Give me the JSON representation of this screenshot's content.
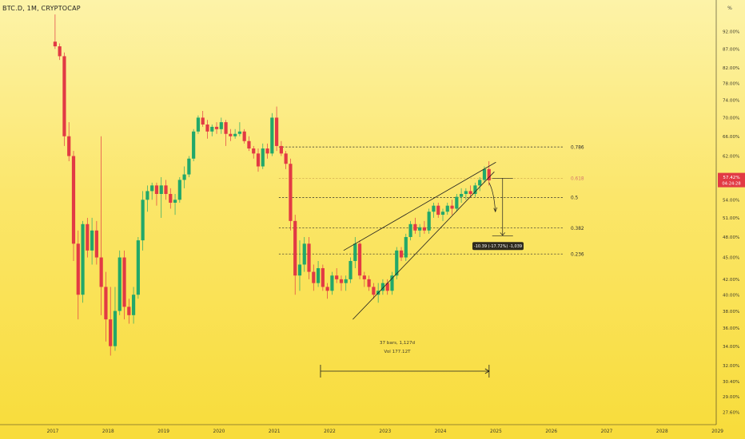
{
  "header": {
    "symbol": "BTC.D, 1M, CRYPTOCAP",
    "percent_symbol": "%"
  },
  "colors": {
    "up": "#22a86a",
    "down": "#e23a44",
    "price_badge": "#e23a44",
    "measure_badge": "#2e2a1e",
    "line": "#1f1f1f"
  },
  "chart_data": {
    "type": "candlestick",
    "title": "BTC.D, 1M, CRYPTOCAP",
    "y_scale": "log",
    "ylim": [
      26.8,
      100
    ],
    "y_ticks": [
      "92.00%",
      "87.00%",
      "82.00%",
      "78.00%",
      "74.00%",
      "70.00%",
      "66.00%",
      "62.00%",
      "58.00%",
      "54.00%",
      "51.00%",
      "48.00%",
      "45.00%",
      "42.00%",
      "40.00%",
      "38.00%",
      "36.00%",
      "34.00%",
      "32.00%",
      "30.40%",
      "29.00%",
      "27.60%"
    ],
    "x_ticks": [
      "2017",
      "2018",
      "2019",
      "2020",
      "2021",
      "2022",
      "2023",
      "2024",
      "2025",
      "2026",
      "2027",
      "2028",
      "2029"
    ],
    "current_price": {
      "value": "57.42%",
      "countdown": "04:24:28"
    },
    "fib_levels": [
      {
        "label": "0.786",
        "value": 63.8
      },
      {
        "label": "0.618",
        "value": 57.8
      },
      {
        "label": "0.5",
        "value": 54.4
      },
      {
        "label": "0.382",
        "value": 49.4
      },
      {
        "label": "0.236",
        "value": 45.5
      }
    ],
    "measure_label": "-10.39 (-17.72%) -1,039",
    "range_info": {
      "bars": "37 bars, 1,127d",
      "vol": "Vol 177.12T"
    },
    "candles": [
      {
        "t": "2017-01",
        "o": 89.0,
        "h": 97.0,
        "l": 87.0,
        "c": 87.7
      },
      {
        "t": "2017-02",
        "o": 87.7,
        "h": 88.5,
        "l": 84.0,
        "c": 85.0
      },
      {
        "t": "2017-03",
        "o": 85.0,
        "h": 86.0,
        "l": 64.0,
        "c": 66.0
      },
      {
        "t": "2017-04",
        "o": 66.0,
        "h": 69.0,
        "l": 61.0,
        "c": 62.0
      },
      {
        "t": "2017-05",
        "o": 62.0,
        "h": 63.0,
        "l": 44.5,
        "c": 47.0
      },
      {
        "t": "2017-06",
        "o": 47.0,
        "h": 49.0,
        "l": 37.0,
        "c": 40.0
      },
      {
        "t": "2017-07",
        "o": 40.0,
        "h": 50.5,
        "l": 39.0,
        "c": 50.0
      },
      {
        "t": "2017-08",
        "o": 50.0,
        "h": 51.0,
        "l": 45.0,
        "c": 46.0
      },
      {
        "t": "2017-09",
        "o": 46.0,
        "h": 51.0,
        "l": 44.0,
        "c": 49.0
      },
      {
        "t": "2017-10",
        "o": 49.0,
        "h": 50.5,
        "l": 44.0,
        "c": 45.0
      },
      {
        "t": "2017-11",
        "o": 45.0,
        "h": 66.0,
        "l": 37.5,
        "c": 41.0
      },
      {
        "t": "2017-12",
        "o": 41.0,
        "h": 43.0,
        "l": 34.5,
        "c": 37.0
      },
      {
        "t": "2018-01",
        "o": 37.0,
        "h": 41.0,
        "l": 33.0,
        "c": 34.0
      },
      {
        "t": "2018-02",
        "o": 34.0,
        "h": 41.0,
        "l": 33.5,
        "c": 38.0
      },
      {
        "t": "2018-03",
        "o": 38.0,
        "h": 46.0,
        "l": 37.5,
        "c": 45.0
      },
      {
        "t": "2018-04",
        "o": 45.0,
        "h": 46.0,
        "l": 37.0,
        "c": 38.5
      },
      {
        "t": "2018-05",
        "o": 38.5,
        "h": 39.5,
        "l": 36.5,
        "c": 37.5
      },
      {
        "t": "2018-06",
        "o": 37.5,
        "h": 41.0,
        "l": 36.5,
        "c": 40.0
      },
      {
        "t": "2018-07",
        "o": 40.0,
        "h": 48.0,
        "l": 39.5,
        "c": 47.5
      },
      {
        "t": "2018-08",
        "o": 47.5,
        "h": 55.5,
        "l": 46.0,
        "c": 54.0
      },
      {
        "t": "2018-09",
        "o": 54.0,
        "h": 56.5,
        "l": 52.0,
        "c": 55.5
      },
      {
        "t": "2018-10",
        "o": 55.5,
        "h": 57.0,
        "l": 54.0,
        "c": 56.5
      },
      {
        "t": "2018-11",
        "o": 56.5,
        "h": 57.0,
        "l": 53.0,
        "c": 55.0
      },
      {
        "t": "2018-12",
        "o": 55.0,
        "h": 58.0,
        "l": 51.0,
        "c": 56.5
      },
      {
        "t": "2019-01",
        "o": 56.5,
        "h": 57.5,
        "l": 54.0,
        "c": 55.0
      },
      {
        "t": "2019-02",
        "o": 55.0,
        "h": 56.0,
        "l": 52.5,
        "c": 53.5
      },
      {
        "t": "2019-03",
        "o": 53.5,
        "h": 55.0,
        "l": 51.5,
        "c": 54.0
      },
      {
        "t": "2019-04",
        "o": 54.0,
        "h": 58.0,
        "l": 53.5,
        "c": 57.5
      },
      {
        "t": "2019-05",
        "o": 57.5,
        "h": 60.0,
        "l": 56.0,
        "c": 58.5
      },
      {
        "t": "2019-06",
        "o": 58.5,
        "h": 62.0,
        "l": 58.0,
        "c": 61.5
      },
      {
        "t": "2019-07",
        "o": 61.5,
        "h": 67.5,
        "l": 61.0,
        "c": 67.0
      },
      {
        "t": "2019-08",
        "o": 67.0,
        "h": 70.5,
        "l": 66.5,
        "c": 70.0
      },
      {
        "t": "2019-09",
        "o": 70.0,
        "h": 71.5,
        "l": 68.0,
        "c": 68.5
      },
      {
        "t": "2019-10",
        "o": 68.5,
        "h": 69.5,
        "l": 65.5,
        "c": 67.0
      },
      {
        "t": "2019-11",
        "o": 67.0,
        "h": 68.5,
        "l": 66.0,
        "c": 68.0
      },
      {
        "t": "2019-12",
        "o": 68.0,
        "h": 69.0,
        "l": 66.5,
        "c": 67.5
      },
      {
        "t": "2020-01",
        "o": 67.5,
        "h": 70.0,
        "l": 66.5,
        "c": 69.0
      },
      {
        "t": "2020-02",
        "o": 69.0,
        "h": 69.5,
        "l": 64.0,
        "c": 66.5
      },
      {
        "t": "2020-03",
        "o": 66.5,
        "h": 67.5,
        "l": 65.0,
        "c": 66.0
      },
      {
        "t": "2020-04",
        "o": 66.0,
        "h": 67.5,
        "l": 65.5,
        "c": 66.5
      },
      {
        "t": "2020-05",
        "o": 66.5,
        "h": 69.0,
        "l": 66.0,
        "c": 67.0
      },
      {
        "t": "2020-06",
        "o": 67.0,
        "h": 67.5,
        "l": 64.5,
        "c": 65.0
      },
      {
        "t": "2020-07",
        "o": 65.0,
        "h": 66.0,
        "l": 63.0,
        "c": 63.5
      },
      {
        "t": "2020-08",
        "o": 63.5,
        "h": 64.0,
        "l": 61.5,
        "c": 62.5
      },
      {
        "t": "2020-09",
        "o": 62.5,
        "h": 63.5,
        "l": 59.0,
        "c": 60.0
      },
      {
        "t": "2020-10",
        "o": 60.0,
        "h": 64.5,
        "l": 59.5,
        "c": 63.5
      },
      {
        "t": "2020-11",
        "o": 63.5,
        "h": 64.5,
        "l": 61.5,
        "c": 62.5
      },
      {
        "t": "2020-12",
        "o": 62.5,
        "h": 71.0,
        "l": 62.0,
        "c": 70.0
      },
      {
        "t": "2021-01",
        "o": 70.0,
        "h": 72.5,
        "l": 63.0,
        "c": 64.0
      },
      {
        "t": "2021-02",
        "o": 64.0,
        "h": 65.0,
        "l": 62.0,
        "c": 62.5
      },
      {
        "t": "2021-03",
        "o": 62.5,
        "h": 63.0,
        "l": 59.5,
        "c": 60.5
      },
      {
        "t": "2021-04",
        "o": 60.5,
        "h": 61.5,
        "l": 49.0,
        "c": 50.5
      },
      {
        "t": "2021-05",
        "o": 50.5,
        "h": 51.5,
        "l": 40.0,
        "c": 42.5
      },
      {
        "t": "2021-06",
        "o": 42.5,
        "h": 47.5,
        "l": 40.5,
        "c": 44.0
      },
      {
        "t": "2021-07",
        "o": 44.0,
        "h": 48.0,
        "l": 43.0,
        "c": 47.0
      },
      {
        "t": "2021-08",
        "o": 47.0,
        "h": 48.0,
        "l": 42.0,
        "c": 43.0
      },
      {
        "t": "2021-09",
        "o": 43.0,
        "h": 44.0,
        "l": 40.5,
        "c": 41.5
      },
      {
        "t": "2021-10",
        "o": 41.5,
        "h": 44.5,
        "l": 41.0,
        "c": 43.5
      },
      {
        "t": "2021-11",
        "o": 43.5,
        "h": 44.0,
        "l": 40.5,
        "c": 41.0
      },
      {
        "t": "2021-12",
        "o": 41.0,
        "h": 41.5,
        "l": 39.5,
        "c": 40.5
      },
      {
        "t": "2022-01",
        "o": 40.5,
        "h": 43.0,
        "l": 40.0,
        "c": 42.5
      },
      {
        "t": "2022-02",
        "o": 42.5,
        "h": 43.5,
        "l": 41.5,
        "c": 42.0
      },
      {
        "t": "2022-03",
        "o": 42.0,
        "h": 42.5,
        "l": 40.5,
        "c": 41.5
      },
      {
        "t": "2022-04",
        "o": 41.5,
        "h": 42.5,
        "l": 40.5,
        "c": 42.0
      },
      {
        "t": "2022-05",
        "o": 42.0,
        "h": 45.0,
        "l": 41.5,
        "c": 44.5
      },
      {
        "t": "2022-06",
        "o": 44.5,
        "h": 48.0,
        "l": 43.5,
        "c": 47.0
      },
      {
        "t": "2022-07",
        "o": 47.0,
        "h": 47.5,
        "l": 42.0,
        "c": 42.5
      },
      {
        "t": "2022-08",
        "o": 42.5,
        "h": 43.0,
        "l": 41.0,
        "c": 42.0
      },
      {
        "t": "2022-09",
        "o": 42.0,
        "h": 42.5,
        "l": 40.5,
        "c": 41.0
      },
      {
        "t": "2022-10",
        "o": 41.0,
        "h": 41.5,
        "l": 39.5,
        "c": 40.0
      },
      {
        "t": "2022-11",
        "o": 40.0,
        "h": 41.5,
        "l": 39.0,
        "c": 40.5
      },
      {
        "t": "2022-12",
        "o": 40.5,
        "h": 42.0,
        "l": 40.0,
        "c": 41.5
      },
      {
        "t": "2023-01",
        "o": 41.5,
        "h": 42.0,
        "l": 40.0,
        "c": 40.5
      },
      {
        "t": "2023-02",
        "o": 40.5,
        "h": 43.0,
        "l": 40.0,
        "c": 42.5
      },
      {
        "t": "2023-03",
        "o": 42.5,
        "h": 46.5,
        "l": 42.0,
        "c": 46.0
      },
      {
        "t": "2023-04",
        "o": 46.0,
        "h": 46.5,
        "l": 44.5,
        "c": 45.0
      },
      {
        "t": "2023-05",
        "o": 45.0,
        "h": 48.5,
        "l": 44.5,
        "c": 48.0
      },
      {
        "t": "2023-06",
        "o": 48.0,
        "h": 50.5,
        "l": 47.5,
        "c": 50.0
      },
      {
        "t": "2023-07",
        "o": 50.0,
        "h": 51.0,
        "l": 48.5,
        "c": 49.0
      },
      {
        "t": "2023-08",
        "o": 49.0,
        "h": 50.0,
        "l": 48.0,
        "c": 49.5
      },
      {
        "t": "2023-09",
        "o": 49.5,
        "h": 50.5,
        "l": 48.5,
        "c": 49.0
      },
      {
        "t": "2023-10",
        "o": 49.0,
        "h": 52.5,
        "l": 48.5,
        "c": 52.0
      },
      {
        "t": "2023-11",
        "o": 52.0,
        "h": 53.5,
        "l": 51.0,
        "c": 53.0
      },
      {
        "t": "2023-12",
        "o": 53.0,
        "h": 53.5,
        "l": 51.0,
        "c": 51.5
      },
      {
        "t": "2024-01",
        "o": 51.5,
        "h": 52.5,
        "l": 50.5,
        "c": 52.0
      },
      {
        "t": "2024-02",
        "o": 52.0,
        "h": 53.5,
        "l": 51.5,
        "c": 53.0
      },
      {
        "t": "2024-03",
        "o": 53.0,
        "h": 54.0,
        "l": 51.5,
        "c": 52.5
      },
      {
        "t": "2024-04",
        "o": 52.5,
        "h": 55.0,
        "l": 52.0,
        "c": 54.5
      },
      {
        "t": "2024-05",
        "o": 54.5,
        "h": 56.0,
        "l": 53.5,
        "c": 55.0
      },
      {
        "t": "2024-06",
        "o": 55.0,
        "h": 56.0,
        "l": 54.0,
        "c": 55.5
      },
      {
        "t": "2024-07",
        "o": 55.5,
        "h": 56.5,
        "l": 54.5,
        "c": 55.0
      },
      {
        "t": "2024-08",
        "o": 55.0,
        "h": 57.0,
        "l": 54.5,
        "c": 56.5
      },
      {
        "t": "2024-09",
        "o": 56.5,
        "h": 58.0,
        "l": 55.5,
        "c": 57.5
      },
      {
        "t": "2024-10",
        "o": 57.5,
        "h": 60.0,
        "l": 57.0,
        "c": 59.5
      },
      {
        "t": "2024-11",
        "o": 59.5,
        "h": 61.0,
        "l": 56.5,
        "c": 57.42
      }
    ]
  }
}
